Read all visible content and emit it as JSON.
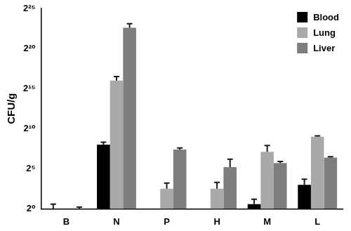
{
  "chart_data": {
    "type": "bar",
    "categories": [
      "B",
      "N",
      "P",
      "H",
      "M",
      "L"
    ],
    "y_label": "CFU/g",
    "log": "y",
    "ylim": [
      1,
      33554432
    ],
    "yticks": [
      {
        "value": 1,
        "label": "2⁰"
      },
      {
        "value": 32,
        "label": "2⁵"
      },
      {
        "value": 1024,
        "label": "2¹⁰"
      },
      {
        "value": 32768,
        "label": "2¹⁵"
      },
      {
        "value": 1048576,
        "label": "2²⁰"
      },
      {
        "value": 33554432,
        "label": "2²⁵"
      }
    ],
    "grid": false,
    "legend": "upper right",
    "series": [
      {
        "name": "Blood",
        "color": "#000000",
        "values": [
          1,
          256,
          null,
          null,
          1.5,
          8
        ],
        "errors": [
          0.5,
          60,
          null,
          null,
          0.8,
          5
        ]
      },
      {
        "name": "Lung",
        "color": "#a9a9a9",
        "values": [
          null,
          65536,
          5.7,
          5.7,
          137,
          512
        ],
        "errors": [
          null,
          27000,
          3.5,
          4.1,
          102,
          37
        ]
      },
      {
        "name": "Liver",
        "color": "#7d7d7d",
        "values": [
          1,
          6360000,
          169,
          37,
          52,
          84
        ],
        "errors": [
          0.15,
          2600000,
          25,
          36,
          8,
          6
        ]
      }
    ]
  }
}
